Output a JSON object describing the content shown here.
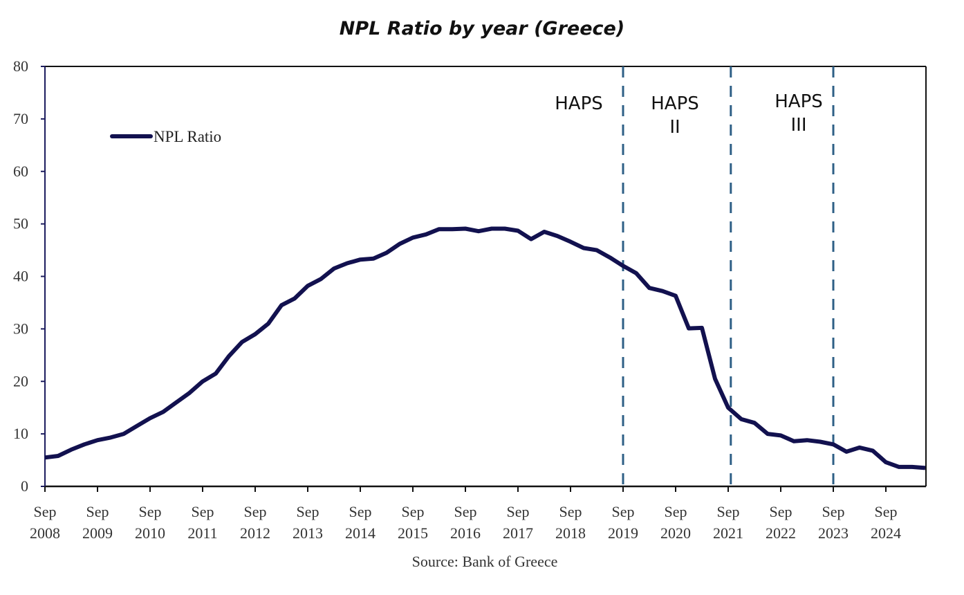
{
  "chart_data": {
    "type": "line",
    "title": "NPL Ratio by year (Greece)",
    "xlabel": "",
    "ylabel": "",
    "source": "Source: Bank of Greece",
    "ylim": [
      0,
      80
    ],
    "yticks": [
      "0",
      "10",
      "20",
      "30",
      "40",
      "50",
      "60",
      "70",
      "80"
    ],
    "xticks": [
      [
        "Sep",
        "2008"
      ],
      [
        "Sep",
        "2009"
      ],
      [
        "Sep",
        "2010"
      ],
      [
        "Sep",
        "2011"
      ],
      [
        "Sep",
        "2012"
      ],
      [
        "Sep",
        "2013"
      ],
      [
        "Sep",
        "2014"
      ],
      [
        "Sep",
        "2015"
      ],
      [
        "Sep",
        "2016"
      ],
      [
        "Sep",
        "2017"
      ],
      [
        "Sep",
        "2018"
      ],
      [
        "Sep",
        "2019"
      ],
      [
        "Sep",
        "2020"
      ],
      [
        "Sep",
        "2021"
      ],
      [
        "Sep",
        "2022"
      ],
      [
        "Sep",
        "2023"
      ],
      [
        "Sep",
        "2024"
      ]
    ],
    "x_frequency": "quarterly",
    "x_start": "Sep 2008",
    "x_end": "Mar 2025",
    "legend": {
      "position": "top-left",
      "entries": [
        "NPL Ratio"
      ]
    },
    "series": [
      {
        "name": "NPL Ratio",
        "color": "#12114f",
        "values": [
          5.5,
          5.8,
          7.0,
          8.0,
          8.8,
          9.3,
          10.0,
          11.5,
          13.0,
          14.2,
          16.0,
          17.8,
          20.0,
          21.5,
          24.8,
          27.5,
          29.0,
          31.0,
          34.5,
          35.8,
          38.2,
          39.5,
          41.5,
          42.5,
          43.2,
          43.4,
          44.5,
          46.2,
          47.4,
          48.0,
          49.0,
          49.0,
          49.1,
          48.6,
          49.1,
          49.1,
          48.7,
          47.1,
          48.5,
          47.7,
          46.6,
          45.4,
          45.0,
          43.6,
          42.0,
          40.6,
          37.8,
          37.2,
          36.3,
          30.1,
          30.2,
          20.5,
          15.0,
          12.8,
          12.1,
          10.0,
          9.7,
          8.6,
          8.8,
          8.5,
          8.0,
          6.6,
          7.4,
          6.8,
          4.6,
          3.7,
          3.7,
          3.5
        ]
      }
    ],
    "annotations": [
      {
        "label_lines": [
          "HAPS"
        ],
        "region_end": "Sep 2019",
        "line_x_quarters": 44
      },
      {
        "label_lines": [
          "HAPS",
          "II"
        ],
        "region_end": "Jun 2021",
        "line_x_quarters": 52.2
      },
      {
        "label_lines": [
          "HAPS",
          "III"
        ],
        "region_end": "Sep 2023",
        "line_x_quarters": 60
      }
    ],
    "annotation_color": "#2e5f86",
    "grid": false
  }
}
